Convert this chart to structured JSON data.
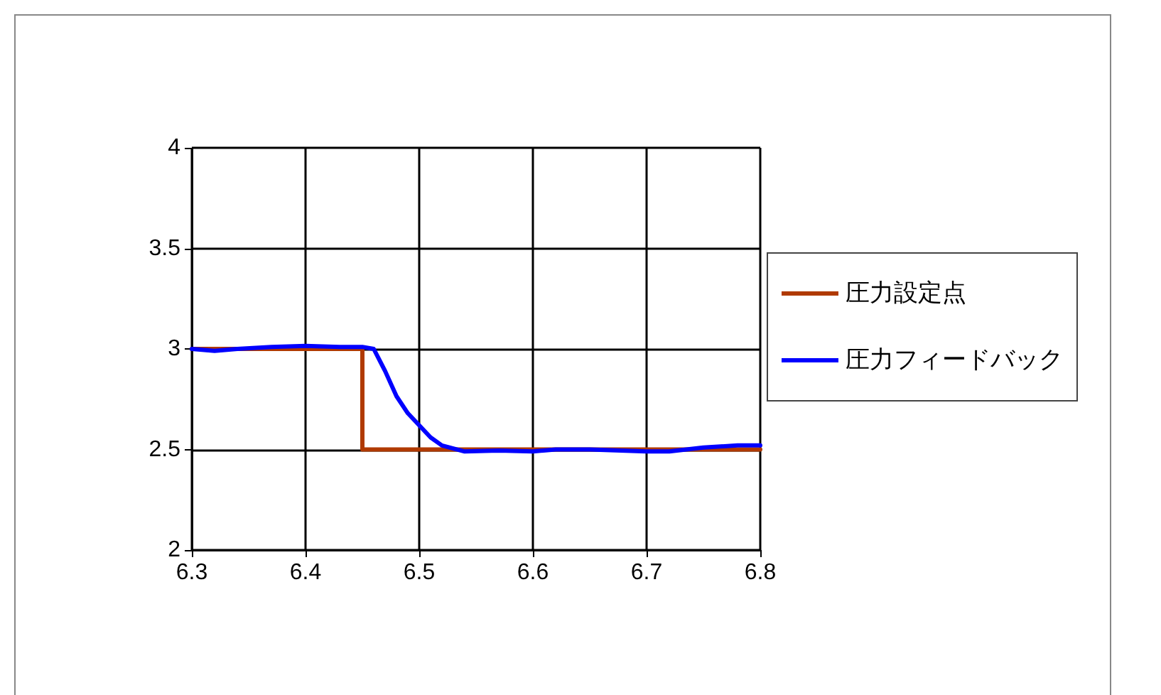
{
  "chart_data": {
    "type": "line",
    "xlim": [
      6.3,
      6.8
    ],
    "xticks": [
      6.3,
      6.4,
      6.5,
      6.6,
      6.7,
      6.8
    ],
    "ylim": [
      2,
      4
    ],
    "yticks": [
      2,
      2.5,
      3,
      3.5,
      4
    ],
    "grid": true,
    "legend": "right",
    "marker": "none",
    "series": [
      {
        "name": "圧力設定点",
        "color": "#b03a00",
        "x": [
          6.3,
          6.45,
          6.45,
          6.8
        ],
        "values": [
          3,
          3,
          2.5,
          2.5
        ]
      },
      {
        "name": "圧力フィードバック",
        "color": "#0000ff",
        "x": [
          6.3,
          6.32,
          6.34,
          6.37,
          6.4,
          6.43,
          6.45,
          6.46,
          6.47,
          6.48,
          6.49,
          6.5,
          6.51,
          6.52,
          6.54,
          6.57,
          6.6,
          6.62,
          6.65,
          6.7,
          6.72,
          6.75,
          6.78,
          6.8
        ],
        "values": [
          3,
          2.99,
          3,
          3.01,
          3.015,
          3.01,
          3.01,
          3,
          2.89,
          2.765,
          2.68,
          2.62,
          2.56,
          2.52,
          2.49,
          2.495,
          2.49,
          2.5,
          2.5,
          2.49,
          2.49,
          2.51,
          2.52,
          2.52
        ]
      }
    ]
  }
}
